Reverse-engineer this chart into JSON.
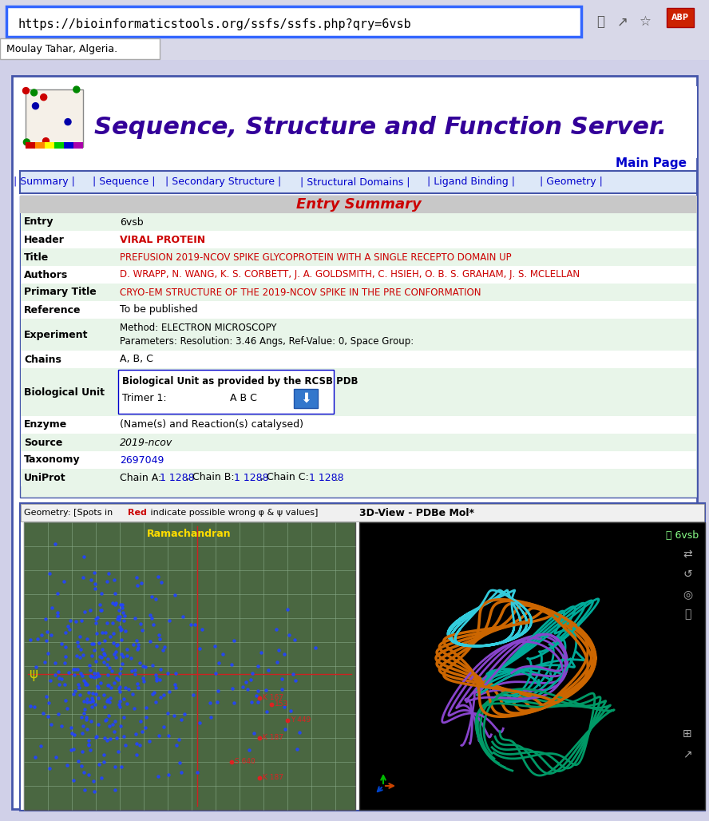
{
  "url": "https://bioinformaticstools.org/ssfs/ssfs.php?qry=6vsb",
  "location_text": "Moulay Tahar, Algeria.",
  "title_text": "Sequence, Structure and Function Server.",
  "main_page": "Main Page",
  "nav_items": [
    "| Summary |",
    "| Sequence |",
    "| Secondary Structure |",
    "| Structural Domains |",
    "| Ligand Binding |",
    "| Geometry |"
  ],
  "entry_summary_title": "Entry Summary",
  "table_rows": [
    [
      "Entry",
      "6vsb"
    ],
    [
      "Header",
      "VIRAL PROTEIN"
    ],
    [
      "Title",
      "PREFUSION 2019-NCOV SPIKE GLYCOPROTEIN WITH A SINGLE RECEPTO DOMAIN UP"
    ],
    [
      "Authors",
      "D. WRAPP, N. WANG, K. S. CORBETT, J. A. GOLDSMITH, C. HSIEH, O. B. S. GRAHAM, J. S. MCLELLAN"
    ],
    [
      "Primary Title",
      "CRYO-EM STRUCTURE OF THE 2019-NCOV SPIKE IN THE PRE CONFORMATION"
    ],
    [
      "Reference",
      "To be published"
    ],
    [
      "Experiment",
      "Method: ELECTRON MICROSCOPY\nParameters: Resolution: 3.46 Angs, Ref-Value: 0, Space Group:"
    ],
    [
      "Chains",
      "A, B, C"
    ],
    [
      "Biological Unit",
      "Biological Unit as provided by the RCSB PDB\nTrimer 1:          A B C"
    ],
    [
      "Enzyme",
      "(Name(s) and Reaction(s) catalysed)"
    ],
    [
      "Source",
      "2019-ncov"
    ],
    [
      "Taxonomy",
      "2697049"
    ],
    [
      "UniProt",
      "Chain A: 1 1288, Chain B: 1 1288, Chain C: 1 1288."
    ]
  ],
  "geometry_label": "Geometry: [Spots in Red indicate possible wrong φ & ψ values]",
  "pdbe_label": "3D-View - PDBe Mol*",
  "bg_color": "#f0f8f0",
  "table_bg": "#e8f5e9",
  "header_bg": "#c8c8c8",
  "nav_bg": "#dde8f8",
  "nav_border": "#4455aa",
  "title_color": "#330099",
  "red_color": "#cc0000",
  "blue_color": "#0000cc",
  "green_bg": "#e0f0e0",
  "outer_border": "#4455aa",
  "browser_bar_color": "#e8e8f8",
  "url_box_color": "#3366ff",
  "ramachandran_bg": "#4a6741",
  "plot3d_bg": "#000000"
}
